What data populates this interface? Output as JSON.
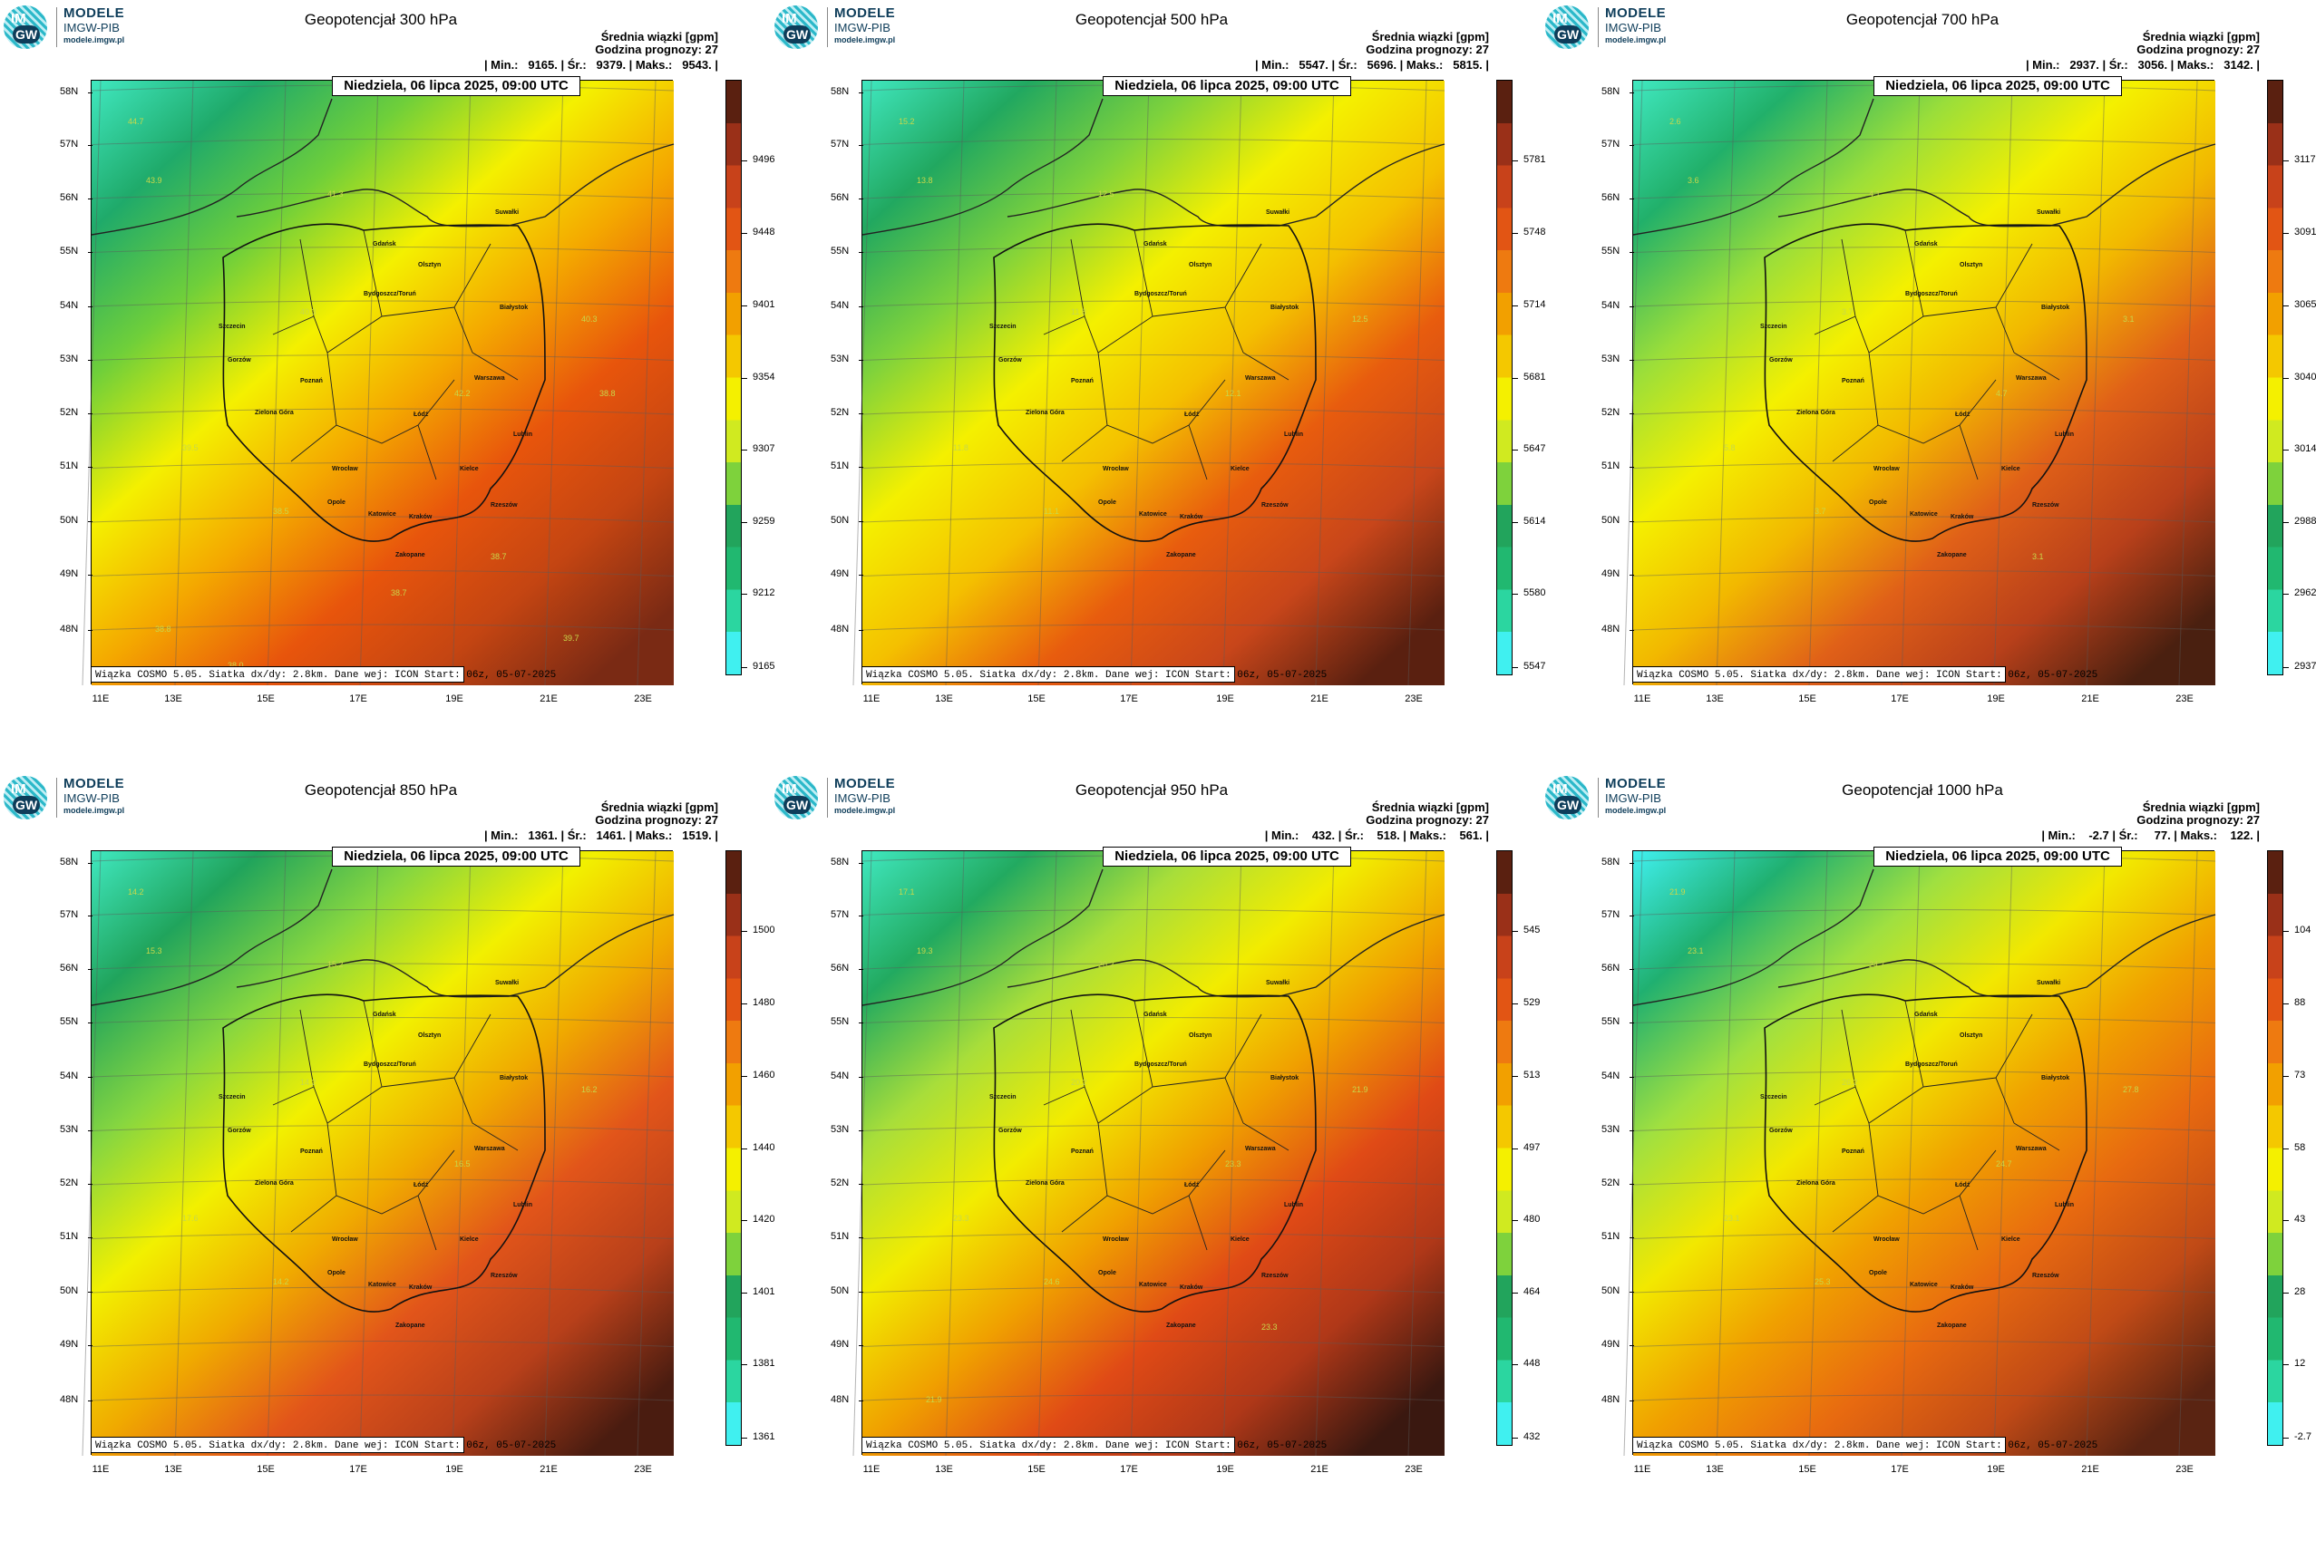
{
  "logo": {
    "line1": "MODELE",
    "line2": "IMGW-PIB",
    "line3": "modele.imgw.pl",
    "badge_top": "IM",
    "badge_bottom": "GW"
  },
  "common": {
    "stat_header": "Średnia wiązki [gpm]",
    "forecast_hour": "Godzina prognozy: 27",
    "date": "Niedziela, 06 lipca 2025, 09:00 UTC",
    "footer": "Wiązka COSMO 5.05. Siatka dx/dy: 2.8km. Dane wej: ICON Start: 06z, 05-07-2025",
    "lat_labels": [
      "58N",
      "57N",
      "56N",
      "55N",
      "54N",
      "53N",
      "52N",
      "51N",
      "50N",
      "49N",
      "48N"
    ],
    "lon_labels": [
      "11E",
      "13E",
      "15E",
      "17E",
      "19E",
      "21E",
      "23E"
    ],
    "cities": [
      "Gdańsk",
      "Suwałki",
      "Olsztyn",
      "Szczecin",
      "Bydgoszcz/Toruń",
      "Białystok",
      "Gorzów",
      "Poznań",
      "Warszawa",
      "Zielona Góra",
      "Łódź",
      "Lublin",
      "Wrocław",
      "Kielce",
      "Opole",
      "Rzeszów",
      "Katowice",
      "Kraków",
      "Zakopane"
    ]
  },
  "panels": [
    {
      "title": "Geopotencjał 300 hPa",
      "stats": "| Min.:   9165. | Śr.:   9379. | Maks.:   9543. |",
      "colorbar": [
        "9496",
        "9448",
        "9401",
        "9354",
        "9307",
        "9259",
        "9212",
        "9165"
      ],
      "contours": [
        "44.7",
        "43.9",
        "41.3",
        "40.3",
        "40.3",
        "42.2",
        "39.5",
        "38.5",
        "38.7",
        "38.8",
        "38.0",
        "39.7",
        "38.7",
        "38.8"
      ]
    },
    {
      "title": "Geopotencjał 500 hPa",
      "stats": "| Min.:   5547. | Śr.:   5696. | Maks.:   5815. |",
      "colorbar": [
        "5781",
        "5748",
        "5714",
        "5681",
        "5647",
        "5614",
        "5580",
        "5547"
      ],
      "contours": [
        "15.2",
        "13.8",
        "12.5",
        "11.8",
        "12.5",
        "12.1",
        "11.8",
        "11.1"
      ]
    },
    {
      "title": "Geopotencjał 700 hPa",
      "stats": "| Min.:   2937. | Śr.:   3056. | Maks.:   3142. |",
      "colorbar": [
        "3117",
        "3091",
        "3065",
        "3040",
        "3014",
        "2988",
        "2962",
        "2937"
      ],
      "contours": [
        "2.6",
        "3.6",
        "4.1",
        "3.7",
        "3.1",
        "4.7",
        "5.8",
        "3.7",
        "3.1"
      ]
    },
    {
      "title": "Geopotencjał 850 hPa",
      "stats": "| Min.:   1361. | Śr.:   1461. | Maks.:   1519. |",
      "colorbar": [
        "1500",
        "1480",
        "1460",
        "1440",
        "1420",
        "1401",
        "1381",
        "1361"
      ],
      "contours": [
        "14.2",
        "15.3",
        "15.2",
        "14.2",
        "16.2",
        "16.5",
        "17.6",
        "14.2"
      ]
    },
    {
      "title": "Geopotencjał 950 hPa",
      "stats": "| Min.:    432. | Śr.:    518. | Maks.:    561. |",
      "colorbar": [
        "545",
        "529",
        "513",
        "497",
        "480",
        "464",
        "448",
        "432"
      ],
      "contours": [
        "17.1",
        "19.3",
        "20.2",
        "20.2",
        "21.9",
        "23.3",
        "23.3",
        "24.6",
        "23.3",
        "21.9"
      ]
    },
    {
      "title": "Geopotencjał 1000 hPa",
      "stats": "| Min.:    -2.7 | Śr.:     77. | Maks.:    122. |",
      "colorbar": [
        "104",
        "88",
        "73",
        "58",
        "43",
        "28",
        "12",
        "-2.7"
      ],
      "contours": [
        "21.9",
        "23.1",
        "24.7",
        "26.2",
        "27.8",
        "24.7",
        "23.1",
        "25.3"
      ]
    }
  ]
}
